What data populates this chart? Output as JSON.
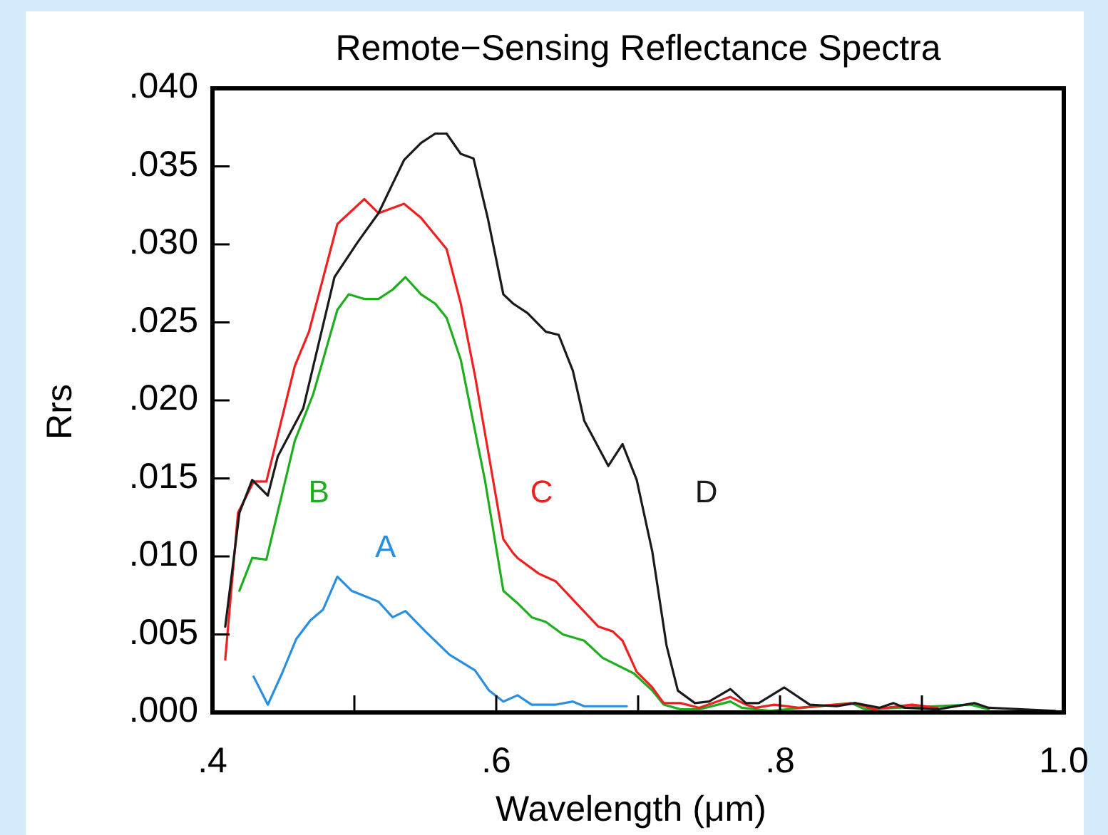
{
  "chart_data": {
    "type": "line",
    "title": "Remote−Sensing Reflectance Spectra",
    "xlabel": "Wavelength (μm)",
    "ylabel": "Rrs",
    "xlim": [
      0.4,
      1.0
    ],
    "xticks": [
      {
        "value": 0.4,
        "label": ".4"
      },
      {
        "value": 0.5,
        "label": null
      },
      {
        "value": 0.6,
        "label": ".6"
      },
      {
        "value": 0.7,
        "label": null
      },
      {
        "value": 0.8,
        "label": ".8"
      },
      {
        "value": 0.9,
        "label": null
      },
      {
        "value": 1.0,
        "label": "1.0"
      }
    ],
    "ylim": [
      0,
      0.04
    ],
    "yticks": [
      {
        "value": 0,
        "label": ".000"
      },
      {
        "value": 0.005,
        "label": ".005"
      },
      {
        "value": 0.01,
        "label": ".010"
      },
      {
        "value": 0.015,
        "label": ".015"
      },
      {
        "value": 0.02,
        "label": ".020"
      },
      {
        "value": 0.025,
        "label": ".025"
      },
      {
        "value": 0.03,
        "label": ".030"
      },
      {
        "value": 0.035,
        "label": ".035"
      },
      {
        "value": 0.04,
        "label": ".040"
      }
    ],
    "grid": false,
    "marker": "none",
    "line_style": "solid",
    "series": [
      {
        "name": "A",
        "color": "#2a8fe0",
        "x": [
          0.429,
          0.439,
          0.449,
          0.459,
          0.469,
          0.478,
          0.488,
          0.498,
          0.517,
          0.527,
          0.536,
          0.55,
          0.567,
          0.585,
          0.595,
          0.605,
          0.615,
          0.625,
          0.642,
          0.654,
          0.662,
          0.692
        ],
        "values": [
          0.0023,
          0.0005,
          0.0025,
          0.0047,
          0.0059,
          0.0066,
          0.0087,
          0.0078,
          0.0071,
          0.0061,
          0.0065,
          0.0052,
          0.0037,
          0.0027,
          0.0014,
          0.0007,
          0.0011,
          0.0005,
          0.0005,
          0.0007,
          0.0004,
          0.0004
        ]
      },
      {
        "name": "B",
        "color": "#1fae1f",
        "x": [
          0.419,
          0.428,
          0.438,
          0.458,
          0.471,
          0.488,
          0.496,
          0.507,
          0.517,
          0.527,
          0.536,
          0.547,
          0.557,
          0.565,
          0.575,
          0.592,
          0.605,
          0.615,
          0.625,
          0.635,
          0.647,
          0.662,
          0.675,
          0.697,
          0.71,
          0.718,
          0.73,
          0.743,
          0.765,
          0.773,
          0.793,
          0.85,
          0.86,
          0.934,
          0.947
        ],
        "values": [
          0.0078,
          0.0099,
          0.0098,
          0.0174,
          0.0204,
          0.0258,
          0.0268,
          0.0265,
          0.0265,
          0.0271,
          0.0279,
          0.0268,
          0.0262,
          0.0253,
          0.0226,
          0.0149,
          0.0078,
          0.007,
          0.0061,
          0.0058,
          0.005,
          0.0046,
          0.0035,
          0.0025,
          0.0014,
          0.0005,
          0.0002,
          0.0002,
          0.0007,
          0.0003,
          0.0001,
          0.0006,
          0.0002,
          0.0005,
          0.0002
        ]
      },
      {
        "name": "C",
        "color": "#f02020",
        "x": [
          0.409,
          0.418,
          0.429,
          0.438,
          0.458,
          0.468,
          0.488,
          0.507,
          0.517,
          0.535,
          0.547,
          0.565,
          0.575,
          0.585,
          0.605,
          0.612,
          0.615,
          0.63,
          0.642,
          0.672,
          0.682,
          0.689,
          0.699,
          0.71,
          0.718,
          0.73,
          0.743,
          0.765,
          0.776,
          0.783,
          0.796,
          0.813,
          0.853,
          0.866,
          0.893,
          0.911
        ],
        "values": [
          0.0034,
          0.0128,
          0.0148,
          0.0148,
          0.0222,
          0.0244,
          0.0313,
          0.0329,
          0.032,
          0.0326,
          0.0317,
          0.0297,
          0.0262,
          0.0216,
          0.0111,
          0.0102,
          0.0099,
          0.0089,
          0.0084,
          0.0055,
          0.0052,
          0.0046,
          0.0026,
          0.0016,
          0.0006,
          0.0006,
          0.0003,
          0.001,
          0.0005,
          0.0003,
          0.0005,
          0.0003,
          0.0006,
          0.0002,
          0.0005,
          0.0003
        ]
      },
      {
        "name": "D",
        "color": "#1a1a1a",
        "x": [
          0.409,
          0.419,
          0.428,
          0.439,
          0.446,
          0.464,
          0.486,
          0.502,
          0.517,
          0.535,
          0.547,
          0.557,
          0.565,
          0.575,
          0.584,
          0.594,
          0.605,
          0.612,
          0.622,
          0.635,
          0.644,
          0.654,
          0.662,
          0.679,
          0.689,
          0.699,
          0.71,
          0.72,
          0.728,
          0.74,
          0.75,
          0.765,
          0.776,
          0.785,
          0.803,
          0.821,
          0.84,
          0.853,
          0.87,
          0.88,
          0.888,
          0.911,
          0.937,
          0.947,
          0.994
        ],
        "values": [
          0.0055,
          0.0128,
          0.0149,
          0.0139,
          0.0164,
          0.0195,
          0.0279,
          0.0301,
          0.032,
          0.0354,
          0.0365,
          0.0371,
          0.0371,
          0.0358,
          0.0355,
          0.0317,
          0.0268,
          0.0262,
          0.0256,
          0.0244,
          0.0242,
          0.0219,
          0.0187,
          0.0158,
          0.0172,
          0.0149,
          0.0103,
          0.0043,
          0.0014,
          0.0006,
          0.0007,
          0.0015,
          0.0006,
          0.0006,
          0.0016,
          0.0005,
          0.0004,
          0.0006,
          0.0003,
          0.0006,
          0.0003,
          0.0002,
          0.0006,
          0.0003,
          0.0001
        ]
      }
    ]
  }
}
